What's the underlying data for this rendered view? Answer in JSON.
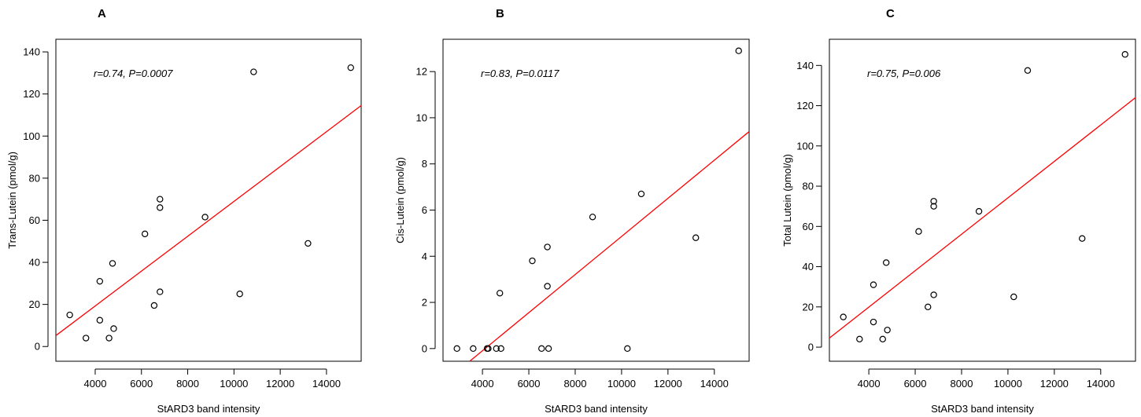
{
  "chart_data": [
    {
      "type": "scatter",
      "panel_label": "A",
      "xlabel": "StARD3 band intensity",
      "ylabel": "Trans-Lutein (pmol/g)",
      "annotation": "r=0.74, P=0.0007",
      "xlim": [
        2300,
        15500
      ],
      "ylim": [
        -7,
        146
      ],
      "xticks": [
        4000,
        6000,
        8000,
        10000,
        12000,
        14000
      ],
      "yticks": [
        0,
        20,
        40,
        60,
        80,
        100,
        120,
        140
      ],
      "points": [
        {
          "x": 2900,
          "y": 15
        },
        {
          "x": 3600,
          "y": 4
        },
        {
          "x": 4200,
          "y": 31
        },
        {
          "x": 4200,
          "y": 12.5
        },
        {
          "x": 4600,
          "y": 4
        },
        {
          "x": 4750,
          "y": 39.5
        },
        {
          "x": 4800,
          "y": 8.5
        },
        {
          "x": 6150,
          "y": 53.5
        },
        {
          "x": 6550,
          "y": 19.5
        },
        {
          "x": 6800,
          "y": 70
        },
        {
          "x": 6800,
          "y": 66
        },
        {
          "x": 6800,
          "y": 26
        },
        {
          "x": 8750,
          "y": 61.5
        },
        {
          "x": 10250,
          "y": 25
        },
        {
          "x": 10850,
          "y": 130.5
        },
        {
          "x": 13200,
          "y": 49
        },
        {
          "x": 15050,
          "y": 132.5
        }
      ],
      "fit_line": {
        "x": [
          2300,
          15500
        ],
        "y": [
          5.2,
          114.5
        ]
      }
    },
    {
      "type": "scatter",
      "panel_label": "B",
      "xlabel": "StARD3 band intensity",
      "ylabel": "Cis-Lutein (pmol/g)",
      "annotation": "r=0.83, P=0.0117",
      "xlim": [
        2300,
        15500
      ],
      "ylim": [
        -0.55,
        13.4
      ],
      "xticks": [
        4000,
        6000,
        8000,
        10000,
        12000,
        14000
      ],
      "yticks": [
        0,
        2,
        4,
        6,
        8,
        10,
        12
      ],
      "points": [
        {
          "x": 2900,
          "y": 0
        },
        {
          "x": 3600,
          "y": 0
        },
        {
          "x": 4200,
          "y": 0
        },
        {
          "x": 4250,
          "y": 0
        },
        {
          "x": 4600,
          "y": 0
        },
        {
          "x": 4800,
          "y": 0
        },
        {
          "x": 4750,
          "y": 2.4
        },
        {
          "x": 6150,
          "y": 3.8
        },
        {
          "x": 6550,
          "y": 0
        },
        {
          "x": 6800,
          "y": 4.4
        },
        {
          "x": 6800,
          "y": 2.7
        },
        {
          "x": 6850,
          "y": 0
        },
        {
          "x": 8750,
          "y": 5.7
        },
        {
          "x": 10250,
          "y": 0
        },
        {
          "x": 10850,
          "y": 6.7
        },
        {
          "x": 13200,
          "y": 4.8
        },
        {
          "x": 15050,
          "y": 12.9
        }
      ],
      "fit_line": {
        "x": [
          3450,
          15500
        ],
        "y": [
          -0.55,
          9.4
        ]
      }
    },
    {
      "type": "scatter",
      "panel_label": "C",
      "xlabel": "StARD3 band intensity",
      "ylabel": "Total Lutein (pmol/g)",
      "annotation": "r=0.75, P=0.006",
      "xlim": [
        2300,
        15500
      ],
      "ylim": [
        -7,
        153
      ],
      "xticks": [
        4000,
        6000,
        8000,
        10000,
        12000,
        14000
      ],
      "yticks": [
        0,
        20,
        40,
        60,
        80,
        100,
        120,
        140
      ],
      "points": [
        {
          "x": 2900,
          "y": 15
        },
        {
          "x": 3600,
          "y": 4
        },
        {
          "x": 4200,
          "y": 31
        },
        {
          "x": 4200,
          "y": 12.5
        },
        {
          "x": 4600,
          "y": 4
        },
        {
          "x": 4750,
          "y": 42
        },
        {
          "x": 4800,
          "y": 8.5
        },
        {
          "x": 6150,
          "y": 57.5
        },
        {
          "x": 6550,
          "y": 20
        },
        {
          "x": 6800,
          "y": 72.5
        },
        {
          "x": 6800,
          "y": 70
        },
        {
          "x": 6800,
          "y": 26
        },
        {
          "x": 8750,
          "y": 67.5
        },
        {
          "x": 10250,
          "y": 25
        },
        {
          "x": 10850,
          "y": 137.5
        },
        {
          "x": 13200,
          "y": 54
        },
        {
          "x": 15050,
          "y": 145.5
        }
      ],
      "fit_line": {
        "x": [
          2300,
          15500
        ],
        "y": [
          4.5,
          124
        ]
      }
    }
  ]
}
